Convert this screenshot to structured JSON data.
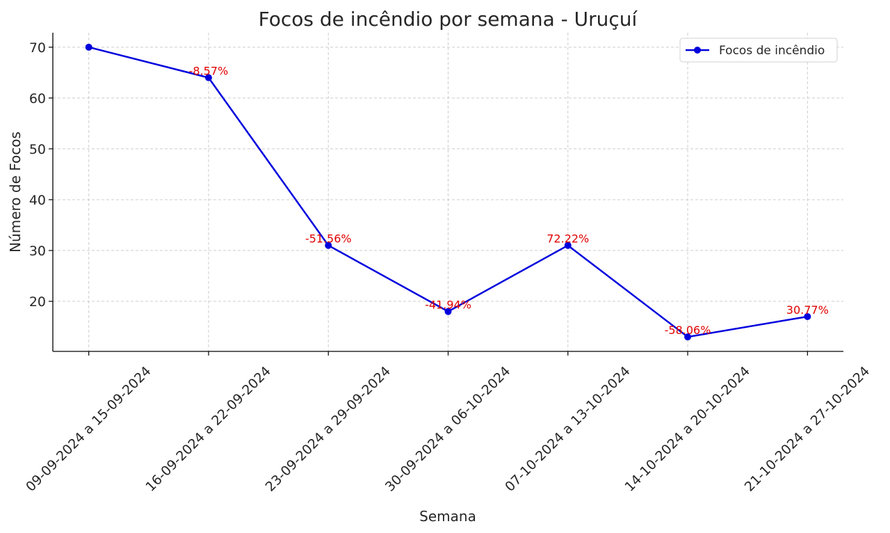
{
  "chart_data": {
    "type": "line",
    "title": "Focos de incêndio por semana - Uruçuí",
    "xlabel": "Semana",
    "ylabel": "Número de Focos",
    "categories": [
      "09-09-2024 a 15-09-2024",
      "16-09-2024 a 22-09-2024",
      "23-09-2024 a 29-09-2024",
      "30-09-2024 a 06-10-2024",
      "07-10-2024 a 13-10-2024",
      "14-10-2024 a 20-10-2024",
      "21-10-2024 a 27-10-2024"
    ],
    "series": [
      {
        "name": "Focos de incêndio",
        "values": [
          70,
          64,
          31,
          18,
          31,
          13,
          17
        ],
        "color": "#0000dd"
      }
    ],
    "annotations": [
      "",
      "-8.57%",
      "-51.56%",
      "-41.94%",
      "72.22%",
      "-58.06%",
      "30.77%"
    ],
    "annotation_color": "#e00000",
    "yticks": [
      20,
      30,
      40,
      50,
      60,
      70
    ],
    "ylim": [
      10.15,
      72.85
    ],
    "grid": true,
    "legend": "top-right"
  }
}
